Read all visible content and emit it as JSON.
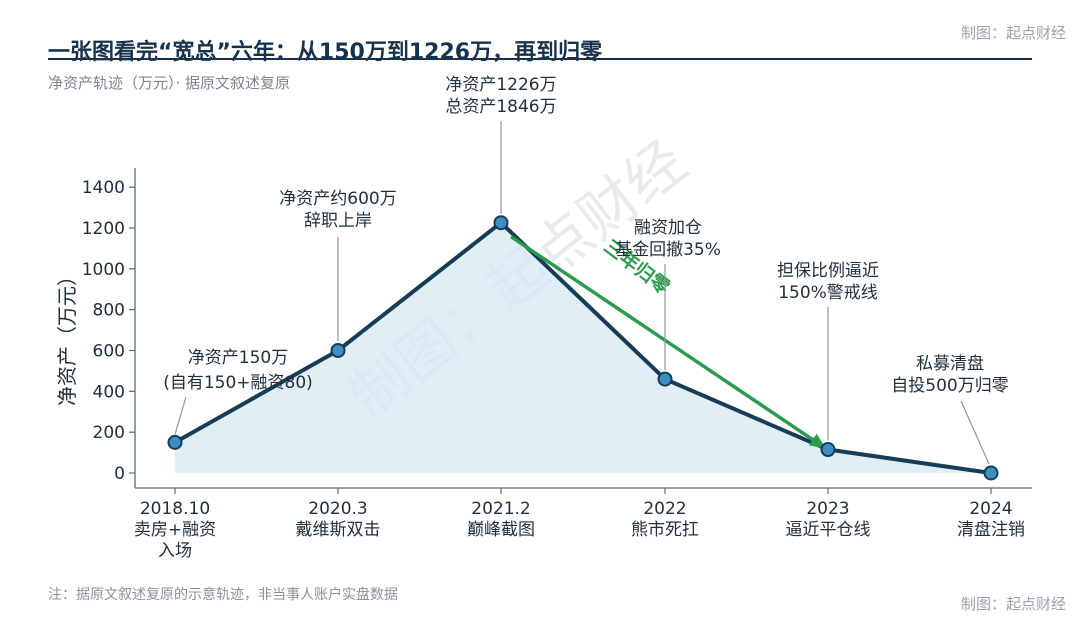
{
  "brand": "制图：起点财经",
  "title": "一张图看完“宽总”六年：从150万到1226万，再到归零",
  "subtitle": "净资产轨迹（万元）· 据原文叙述复原",
  "footnote": "注：据原文叙述复原的示意轨迹，非当事人账户实盘数据",
  "colors": {
    "line": "#173c56",
    "marker": "#3b8fc2",
    "fill": "#d6e9f3",
    "trend": "#2e9a4e",
    "axis": "#5a6b75",
    "text": "#1f2f3b",
    "watermark": "#c9d2d6"
  },
  "watermark": "制图：起点财经",
  "chart_data": {
    "type": "area",
    "title": "一张图看完“宽总”六年：从150万到1226万，再到归零",
    "ylabel": "净资产（万元）",
    "xlabel": "",
    "ylim": [
      0,
      1500
    ],
    "yticks": [
      0,
      200,
      400,
      600,
      800,
      1000,
      1200,
      1400
    ],
    "grid": false,
    "x": [
      "2018.10",
      "2020.3",
      "2021.2",
      "2022",
      "2023",
      "2024"
    ],
    "x_labels": [
      [
        "2018.10",
        "卖房+融资",
        "入场"
      ],
      [
        "2020.3",
        "戴维斯双击"
      ],
      [
        "2021.2",
        "巅峰截图"
      ],
      [
        "2022",
        "熊市死扛"
      ],
      [
        "2023",
        "逼近平仓线"
      ],
      [
        "2024",
        "清盘注销"
      ]
    ],
    "series": [
      {
        "values": [
          150,
          600,
          1226,
          460,
          115,
          0
        ]
      }
    ],
    "annotations": [
      {
        "point": 0,
        "lines": [
          "净资产150万",
          "(自有150+融资80)"
        ]
      },
      {
        "point": 1,
        "lines": [
          "净资产约600万",
          "辞职上岸"
        ]
      },
      {
        "point": 2,
        "lines": [
          "净资产1226万",
          "总资产1846万"
        ]
      },
      {
        "point": 3,
        "lines": [
          "融资加仓",
          "基金回撤35%"
        ]
      },
      {
        "point": 4,
        "lines": [
          "担保比例逼近",
          "150%警戒线"
        ]
      },
      {
        "point": 5,
        "lines": [
          "私募清盘",
          "自投500万归零"
        ]
      }
    ],
    "trend_arrow": {
      "from": [
        2,
        1226
      ],
      "to": [
        4,
        115
      ],
      "label": "三年归零"
    }
  }
}
